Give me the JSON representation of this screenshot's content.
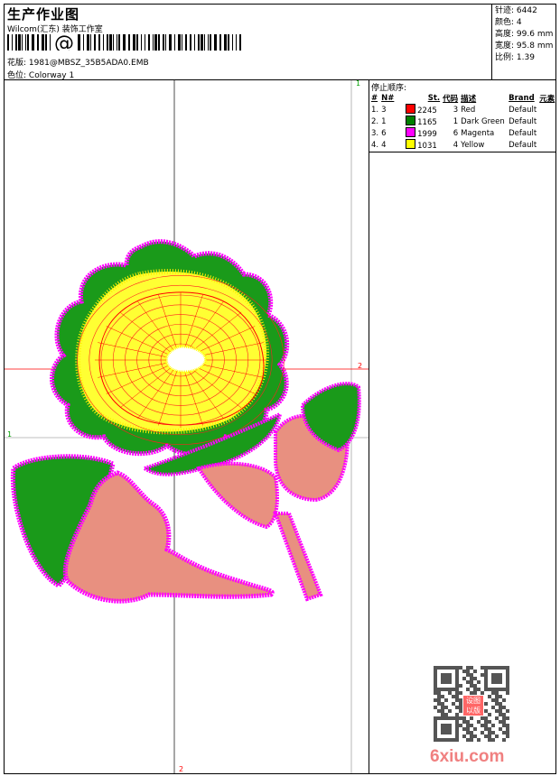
{
  "header": {
    "title": "生产作业图",
    "company": "Wilcom(汇东) 装饰工作室",
    "barcode_symbol": "@",
    "design_label": "花版:",
    "design_value": "1981@MBSZ_35B5ADA0.EMB",
    "colorway_label": "色位:",
    "colorway_value": "Colorway 1"
  },
  "stats": [
    {
      "label": "针迹:",
      "value": "6442"
    },
    {
      "label": "颜色:",
      "value": "4"
    },
    {
      "label": "高度:",
      "value": "99.6 mm"
    },
    {
      "label": "宽度:",
      "value": "95.8 mm"
    },
    {
      "label": "比例:",
      "value": "1.39"
    }
  ],
  "color_table": {
    "title": "停止顺序:",
    "headers": [
      "#",
      "N#",
      "St.",
      "代码",
      "描述",
      "Brand",
      "元素"
    ],
    "rows": [
      {
        "n": "1.",
        "num": "3",
        "color": "#ff0000",
        "st": "2245",
        "code": "3",
        "desc": "Red",
        "brand": "Default"
      },
      {
        "n": "2.",
        "num": "1",
        "color": "#008000",
        "st": "1165",
        "code": "1",
        "desc": "Dark Green",
        "brand": "Default"
      },
      {
        "n": "3.",
        "num": "6",
        "color": "#ff00ff",
        "st": "1999",
        "code": "6",
        "desc": "Magenta",
        "brand": "Default"
      },
      {
        "n": "4.",
        "num": "4",
        "color": "#ffff00",
        "st": "1031",
        "code": "4",
        "desc": "Yellow",
        "brand": "Default"
      }
    ]
  },
  "markers": {
    "m1": "1",
    "m2": "2"
  },
  "watermark": {
    "text": "6xiu.com",
    "seal": "设图以版"
  }
}
